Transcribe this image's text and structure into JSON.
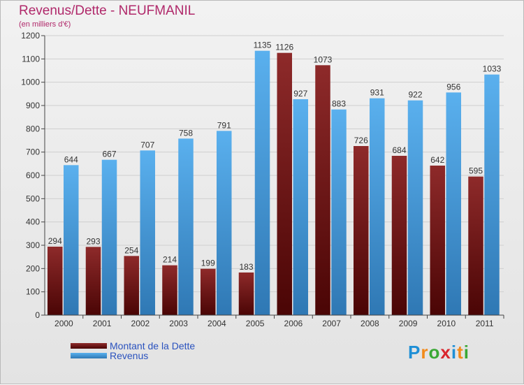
{
  "chart_data": {
    "type": "bar",
    "title": "Revenus/Dette - NEUFMANIL",
    "subtitle": "(en milliers d'€)",
    "categories": [
      "2000",
      "2001",
      "2002",
      "2003",
      "2004",
      "2005",
      "2006",
      "2007",
      "2008",
      "2009",
      "2010",
      "2011"
    ],
    "series": [
      {
        "name": "Montant de la Dette",
        "values": [
          294,
          293,
          254,
          214,
          199,
          183,
          1126,
          1073,
          726,
          684,
          642,
          595
        ],
        "color": "#7a1818"
      },
      {
        "name": "Revenus",
        "values": [
          644,
          667,
          707,
          758,
          791,
          1135,
          927,
          883,
          931,
          922,
          956,
          1033
        ],
        "color": "#4ea3e3"
      }
    ],
    "ylim": [
      0,
      1200
    ],
    "yticks": [
      0,
      100,
      200,
      300,
      400,
      500,
      600,
      700,
      800,
      900,
      1000,
      1100,
      1200
    ],
    "grid": true,
    "legend_position": "bottom-left"
  },
  "colors": {
    "title": "#b0286a",
    "legend_text": "#2a52be",
    "dette_light": "#8e2a2a",
    "dette_dark": "#4a0505",
    "revenus_light": "#5ab0ee",
    "revenus_dark": "#2f78b4"
  },
  "logo": {
    "letters": [
      "P",
      "r",
      "o",
      "x",
      "i",
      "t",
      "i"
    ],
    "letter_colors": [
      "#1e8fd6",
      "#f28a1a",
      "#3aa835",
      "#d9262d",
      "#1e8fd6",
      "#f28a1a",
      "#3aa835"
    ]
  }
}
